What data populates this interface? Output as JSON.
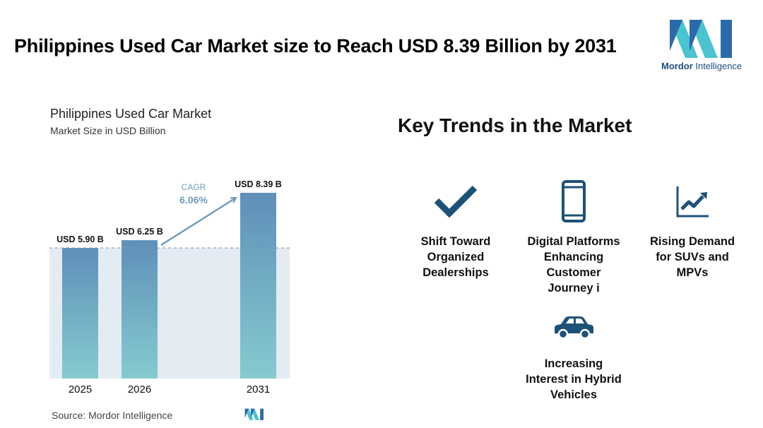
{
  "page": {
    "headline": "Philippines Used Car Market size to Reach USD 8.39 Billion by 2031"
  },
  "brand": {
    "name_bold": "Mordor",
    "name_rest": " Intelligence"
  },
  "chart": {
    "title": "Philippines Used Car Market",
    "subtitle": "Market Size in USD Billion",
    "cagr_label": "CAGR",
    "cagr_value": "6.06%",
    "source": "Source:  Mordor Intelligence"
  },
  "chart_data": {
    "type": "bar",
    "title": "Philippines Used Car Market",
    "ylabel": "Market Size in USD Billion",
    "xlabel": "",
    "categories": [
      "2025",
      "2026",
      "2031"
    ],
    "values": [
      5.9,
      6.25,
      8.39
    ],
    "data_labels": [
      "USD 5.90 B",
      "USD 6.25 B",
      "USD 8.39 B"
    ],
    "ylim": [
      0,
      8.39
    ],
    "grid": false,
    "annotation": {
      "text": "CAGR 6.06%"
    }
  },
  "trends": {
    "title": "Key Trends in the Market",
    "items": [
      {
        "icon": "checkmark-icon",
        "label_lines": [
          "Shift Toward",
          "Organized",
          "Dealerships"
        ]
      },
      {
        "icon": "smartphone-icon",
        "label_lines": [
          "Digital Platforms",
          "Enhancing",
          "Customer",
          "Journey i"
        ]
      },
      {
        "icon": "rising-chart-icon",
        "label_lines": [
          "Rising Demand",
          "for SUVs and",
          "MPVs"
        ]
      },
      {
        "icon": "car-icon",
        "label_lines": [
          "Increasing",
          "Interest in Hybrid",
          "Vehicles"
        ]
      }
    ]
  },
  "colors": {
    "bar_top": "#5f8fb8",
    "bar_bottom": "#86cbd0",
    "band": "#e3ebf3",
    "arrow": "#6e9bbb",
    "icon": "#1d5277",
    "brand_dark": "#2b6aa8",
    "brand_light": "#4cc3cf"
  }
}
